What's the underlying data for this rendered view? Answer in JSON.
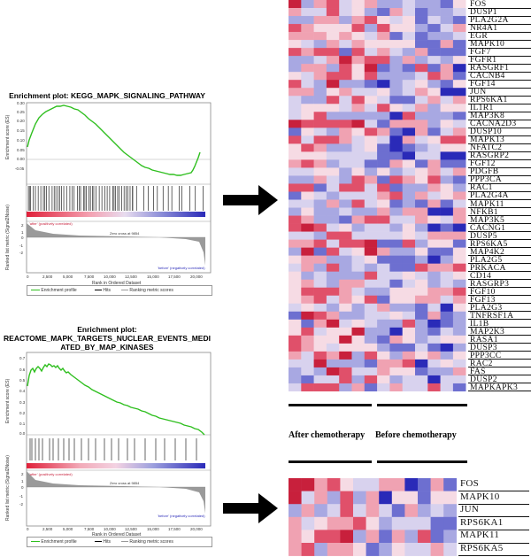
{
  "panel1": {
    "title": "Enrichment plot: KEGG_MAPK_SIGNALING_PATHWAY",
    "es_axis_label": "Enrichment score (ES)",
    "rank_axis_label": "Ranked list metric (Signal2Noise)",
    "x_axis_label": "Rank in Ordered Dataset",
    "pos_label": "'after' (positively correlated)",
    "neg_label": "'before' (negatively correlated)",
    "zero_cross_label": "Zero cross at 9854",
    "es_ticks": [
      "0.30",
      "0.25",
      "0.20",
      "0.15",
      "0.10",
      "0.05",
      "0.00",
      "-0.05"
    ],
    "rank_ticks": [
      "2",
      "1",
      "0",
      "-1",
      "-2"
    ],
    "x_ticks": [
      "0",
      "2,500",
      "5,000",
      "7,500",
      "10,000",
      "12,500",
      "15,000",
      "17,500",
      "20,000"
    ],
    "legend": [
      "Enrichment profile",
      "Hits",
      "Ranking metric scores"
    ]
  },
  "panel2": {
    "title_line1": "Enrichment plot:",
    "title_line2": "REACTOME_MAPK_TARGETS_NUCLEAR_EVENTS_MEDI",
    "title_line3": "ATED_BY_MAP_KINASES",
    "es_axis_label": "Enrichment score (ES)",
    "rank_axis_label": "Ranked list metric (Signal2Noise)",
    "x_axis_label": "Rank in Ordered Dataset",
    "pos_label": "'after' (positively correlated)",
    "neg_label": "'before' (negatively correlated)",
    "zero_cross_label": "Zero cross at 9854",
    "es_ticks": [
      "0.7",
      "0.6",
      "0.5",
      "0.4",
      "0.3",
      "0.2",
      "0.1",
      "0.0"
    ],
    "rank_ticks": [
      "2",
      "1",
      "0",
      "-1",
      "-2"
    ],
    "x_ticks": [
      "0",
      "2,500",
      "5,000",
      "7,500",
      "10,000",
      "12,500",
      "15,000",
      "17,500",
      "20,000"
    ],
    "legend": [
      "Enrichment profile",
      "Hits",
      "Ranking metric scores"
    ]
  },
  "heatmap1": {
    "genes": [
      "FOS",
      "DUSP1",
      "PLA2G2A",
      "NR4A1",
      "EGR",
      "MAPK10",
      "FGF7",
      "FGFR1",
      "RASGRF1",
      "CACNB4",
      "FGF14",
      "JUN",
      "RPS6KA1",
      "IL1R1",
      "MAP3K8",
      "CACNA2D3",
      "DUSP10",
      "MAPK13",
      "NFATC2",
      "RASGRP2",
      "FGF12",
      "PDGFB",
      "PPP3CA",
      "RAC1",
      "PLA2G4A",
      "MAPK11",
      "NFKB1",
      "MAP3K5",
      "CACNG1",
      "DUSP5",
      "RPS6KA5",
      "MAP4K2",
      "PLA2G5",
      "PRKACA",
      "CD14",
      "RASGRP3",
      "FGF10",
      "FGF13",
      "PLA2G3",
      "TNFRSF1A",
      "IL1B",
      "MAP2K3",
      "RASA1",
      "DUSP3",
      "PPP3CC",
      "RAC2",
      "FAS",
      "DUSP2",
      "MAPKAPK3"
    ]
  },
  "heatmap2": {
    "genes": [
      "FOS",
      "MAPK10",
      "JUN",
      "RPS6KA1",
      "MAPK11",
      "RPS6KA5"
    ]
  },
  "groups": {
    "after": "After chemotherapy",
    "before": "Before chemotherapy"
  },
  "colors": {
    "curve": "#2fbf1f",
    "red": "#c8203c",
    "blue": "#2a2ab8",
    "arrow": "#000000"
  }
}
